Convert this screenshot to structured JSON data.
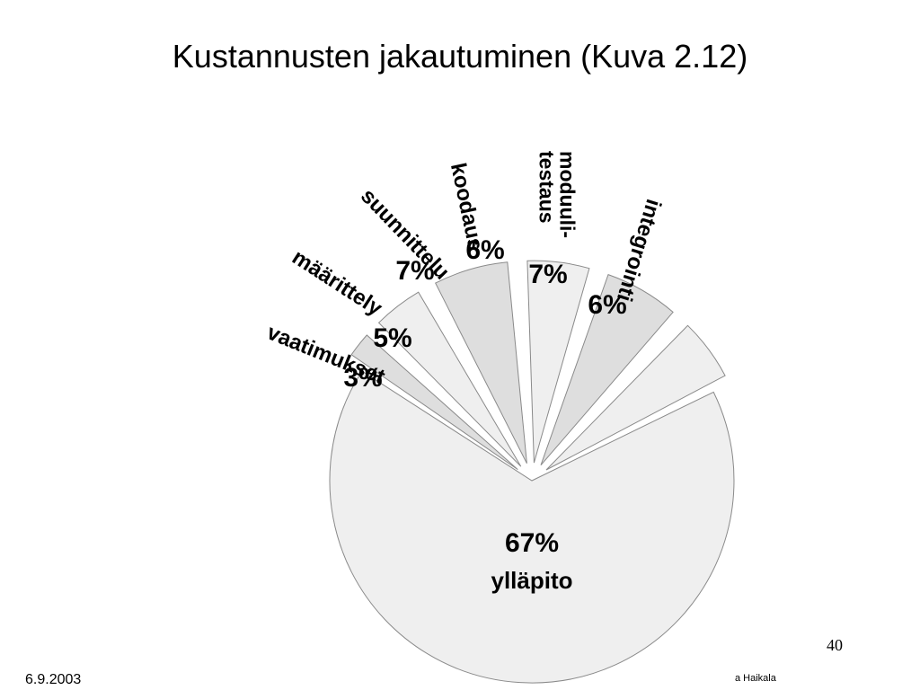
{
  "slide": {
    "title": "Kustannusten jakautuminen (Kuva 2.12)",
    "number": "40",
    "date": "6.9.2003",
    "author": "a Haikala"
  },
  "colors": {
    "slice_light": "#efefef",
    "slice_dark": "#dedede",
    "outline": "#8a8a8a",
    "text": "#000000"
  },
  "chart_data": {
    "type": "pie",
    "title": "Kustannusten jakautuminen (Kuva 2.12)",
    "categories": [
      "ylläpito",
      "vaatimukset",
      "määrittely",
      "suunnittelu",
      "koodaus",
      "moduuli-testaus",
      "integrointi"
    ],
    "values": [
      67,
      3,
      5,
      7,
      6,
      7,
      6
    ],
    "value_labels": [
      "67%",
      "3%",
      "5%",
      "7%",
      "6%",
      "7%",
      "6%"
    ],
    "label_lines": [
      [
        "ylläpito"
      ],
      [
        "vaatimukset"
      ],
      [
        "määrittely"
      ],
      [
        "suunnittelu"
      ],
      [
        "koodaus"
      ],
      [
        "moduuli-",
        "testaus"
      ],
      [
        "integrointi"
      ]
    ],
    "exploded": [
      "vaatimukset",
      "määrittely",
      "suunnittelu",
      "koodaus",
      "moduuli-testaus",
      "integrointi"
    ],
    "shades": [
      "light",
      "dark",
      "light",
      "dark",
      "light",
      "dark",
      "light"
    ]
  }
}
